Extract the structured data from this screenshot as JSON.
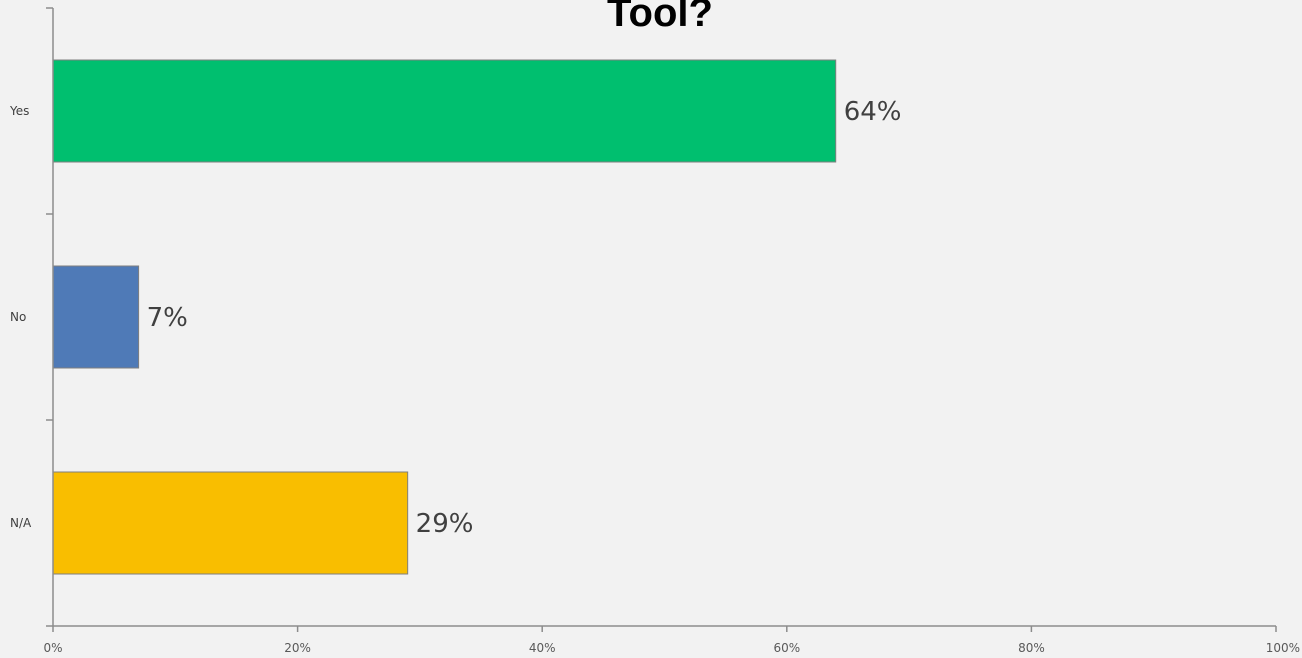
{
  "chart_data": {
    "type": "bar",
    "orientation": "horizontal",
    "title": "Tool?",
    "categories": [
      "Yes",
      "No",
      "N/A"
    ],
    "values": [
      64,
      7,
      29
    ],
    "data_labels": [
      "64%",
      "7%",
      "29%"
    ],
    "colors": [
      "#00bf6f",
      "#4f7ab7",
      "#f9be00"
    ],
    "xlim": [
      0,
      100
    ],
    "xticks": [
      0,
      20,
      40,
      60,
      80,
      100
    ],
    "xtick_labels": [
      "0%",
      "20%",
      "40%",
      "60%",
      "80%",
      "100%"
    ],
    "grid": false,
    "legend": "none"
  }
}
